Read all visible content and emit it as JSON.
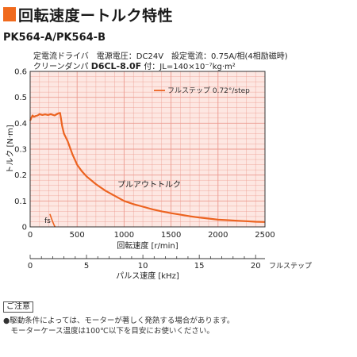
{
  "header": {
    "title": "回転速度ートルク特性",
    "model": "PK564-A/PK564-B"
  },
  "conditions": {
    "line1": "定電流ドライバ　電源電圧：DC24V　設定電流：0.75A/相(4相励磁時)",
    "line2_prefix": "クリーンダンパ",
    "line2_damper": "D6CL-8.0F",
    "line2_suffix": "付：JL=140×10⁻⁷kg·m²"
  },
  "notice": {
    "label": "ご注意",
    "line1": "●駆動条件によっては、モーターが著しく発熱する場合があります。",
    "line2": "　モーターケース温度は100℃以下を目安にお使いください。"
  },
  "chart_data": {
    "type": "line",
    "xlabel": "回転速度 [r/min]",
    "ylabel": "トルク [N·m]",
    "xlim": [
      0,
      2500
    ],
    "ylim": [
      0,
      0.6
    ],
    "x_ticks": [
      "0",
      "500",
      "1000",
      "1500",
      "2000",
      "2500"
    ],
    "y_ticks": [
      "0",
      "0.1",
      "0.2",
      "0.3",
      "0.4",
      "0.5",
      "0.6"
    ],
    "secondary_x_axis": {
      "label": "パルス速度 [kHz]",
      "unit_label": "フルステップ",
      "lim": [
        0,
        20.83
      ],
      "ticks": [
        "0",
        "5",
        "10",
        "15",
        "20"
      ]
    },
    "grid": true,
    "background_color": "#fde7e2",
    "grid_color": "#ec9a8f",
    "series": [
      {
        "name": "フルステップ 0.72°/step",
        "color": "#ec6320",
        "x": [
          0,
          12,
          25,
          40,
          60,
          80,
          100,
          130,
          160,
          190,
          220,
          260,
          300,
          318,
          328,
          340,
          360,
          400,
          450,
          500,
          550,
          600,
          700,
          800,
          900,
          1000,
          1100,
          1200,
          1300,
          1400,
          1500,
          1600,
          1700,
          1800,
          1900,
          2000,
          2100,
          2200,
          2300,
          2400,
          2500
        ],
        "y": [
          0.41,
          0.42,
          0.43,
          0.425,
          0.428,
          0.43,
          0.435,
          0.432,
          0.434,
          0.432,
          0.435,
          0.43,
          0.438,
          0.44,
          0.42,
          0.39,
          0.36,
          0.33,
          0.28,
          0.24,
          0.215,
          0.195,
          0.165,
          0.14,
          0.12,
          0.1,
          0.088,
          0.078,
          0.068,
          0.06,
          0.053,
          0.047,
          0.041,
          0.036,
          0.032,
          0.028,
          0.026,
          0.024,
          0.022,
          0.02,
          0.019
        ]
      },
      {
        "name": "fs",
        "color": "#ec6320",
        "x": [
          210,
          225,
          240,
          255,
          265
        ],
        "y": [
          0.05,
          0.035,
          0.02,
          0.007,
          0
        ]
      }
    ],
    "annotations": {
      "pullout": "プルアウトトルク",
      "fs": "fs"
    }
  }
}
